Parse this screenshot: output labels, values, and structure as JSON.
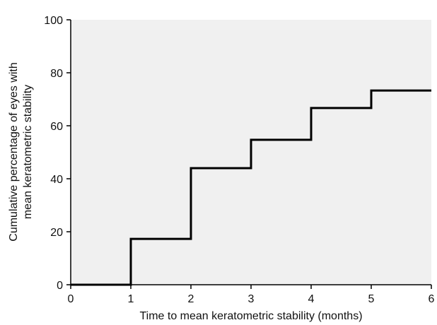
{
  "chart_data": {
    "type": "line",
    "step": true,
    "title": "",
    "xlabel": "Time to mean keratometric stability (months)",
    "ylabel_lines": [
      "Cumulative percentage of eyes with",
      "mean keratometric stability"
    ],
    "xlim": [
      0,
      6
    ],
    "ylim": [
      0,
      100
    ],
    "xticks": [
      0,
      1,
      2,
      3,
      4,
      5,
      6
    ],
    "yticks": [
      0,
      20,
      40,
      60,
      80,
      100
    ],
    "grid": false,
    "legend": "none",
    "plot_background": "#f0f0f0",
    "line_color": "#000000",
    "series": [
      {
        "x": [
          0,
          1,
          2,
          3,
          4,
          5,
          6
        ],
        "y": [
          0,
          17.3,
          44,
          54.7,
          66.7,
          73.3,
          73.3
        ]
      }
    ]
  }
}
